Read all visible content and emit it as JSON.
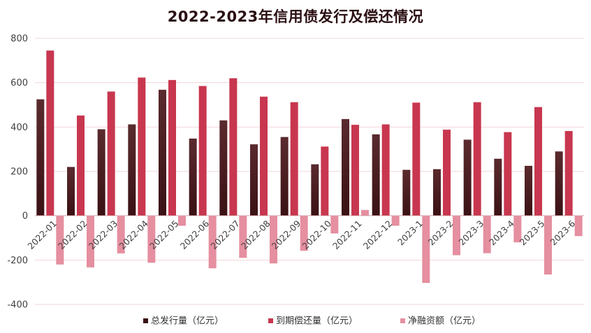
{
  "chart_data": {
    "type": "bar",
    "title": "2022-2023年信用债发行及偿还情况",
    "categories": [
      "2022-01",
      "2022-02",
      "2022-03",
      "2022-04",
      "2022-05",
      "2022-06",
      "2022-07",
      "2022-08",
      "2022-09",
      "2022-10",
      "2022-11",
      "2022-12",
      "2023-1",
      "2023-2",
      "2023-3",
      "2023-4",
      "2023-5",
      "2023-6"
    ],
    "series": [
      {
        "name": "总发行量（亿元）",
        "color": "#3a1114",
        "values": [
          525,
          220,
          390,
          412,
          568,
          348,
          430,
          322,
          355,
          232,
          436,
          367,
          207,
          210,
          343,
          257,
          225,
          290
        ]
      },
      {
        "name": "到期偿还量（亿元）",
        "color": "#c8374f",
        "values": [
          745,
          452,
          560,
          623,
          612,
          585,
          620,
          537,
          512,
          312,
          410,
          412,
          510,
          388,
          512,
          377,
          490,
          382
        ]
      },
      {
        "name": "净融资额（亿元）",
        "color": "#e58fa0",
        "values": [
          -220,
          -233,
          -170,
          -212,
          -45,
          -237,
          -190,
          -215,
          -158,
          -80,
          26,
          -45,
          -303,
          -178,
          -169,
          -120,
          -265,
          -92
        ]
      }
    ],
    "y_ticks": [
      "800",
      "600",
      "400",
      "200",
      "0",
      "-200",
      "-400"
    ],
    "ylim": [
      -400,
      800
    ],
    "grid": true,
    "legend_position": "bottom"
  }
}
